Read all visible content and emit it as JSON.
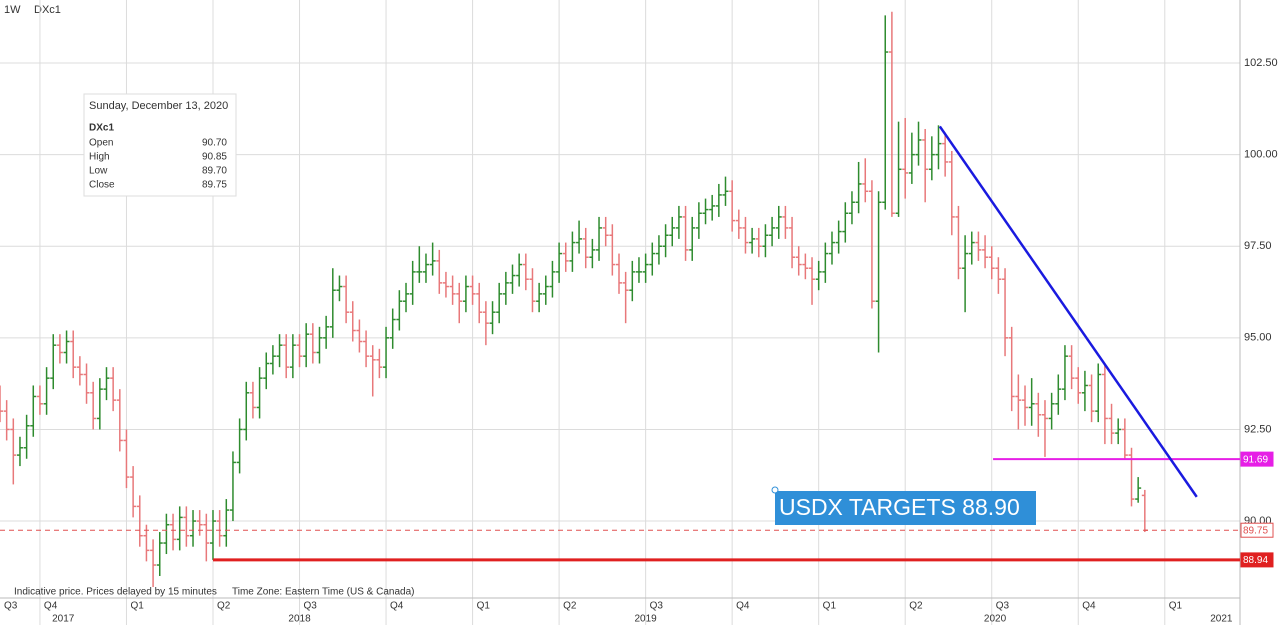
{
  "chart_data": {
    "type": "ohlc",
    "interval": "1W",
    "symbol": "DXc1",
    "up_color": "#2e8b2e",
    "down_color": "#e8787a",
    "ylim": [
      87.9,
      104.22
    ],
    "yticks": [
      {
        "value": 90,
        "label": "90.00"
      },
      {
        "value": 92.5,
        "label": "92.50"
      },
      {
        "value": 95,
        "label": "95.00"
      },
      {
        "value": 97.5,
        "label": "97.50"
      },
      {
        "value": 100,
        "label": "100.00"
      },
      {
        "value": 102.5,
        "label": "102.50"
      }
    ],
    "xlim": [
      0,
      186.3
    ],
    "xticks": [
      {
        "value": -7,
        "label": "Q3"
      },
      {
        "value": 6,
        "label": "Q4"
      },
      {
        "value": 19,
        "label": "Q1"
      },
      {
        "value": 32,
        "label": "Q2"
      },
      {
        "value": 45,
        "label": "Q3"
      },
      {
        "value": 58,
        "label": "Q4"
      },
      {
        "value": 71,
        "label": "Q1"
      },
      {
        "value": 84,
        "label": "Q2"
      },
      {
        "value": 97,
        "label": "Q3"
      },
      {
        "value": 110,
        "label": "Q4"
      },
      {
        "value": 123,
        "label": "Q1"
      },
      {
        "value": 136,
        "label": "Q2"
      },
      {
        "value": 149,
        "label": "Q3"
      },
      {
        "value": 162,
        "label": "Q4"
      },
      {
        "value": 175,
        "label": "Q1"
      }
    ],
    "year_labels": [
      {
        "value": 9.5,
        "label": "2017"
      },
      {
        "value": 45,
        "label": "2018"
      },
      {
        "value": 97,
        "label": "2019"
      },
      {
        "value": 149.5,
        "label": "2020"
      },
      {
        "value": 183.5,
        "label": "2021"
      }
    ],
    "grid": true,
    "bars": [
      [
        93.4,
        93.7,
        92.7,
        93.0
      ],
      [
        93.0,
        93.3,
        92.2,
        92.5
      ],
      [
        92.5,
        92.8,
        91.0,
        91.8
      ],
      [
        91.8,
        92.3,
        91.5,
        92.0
      ],
      [
        92.0,
        92.9,
        91.7,
        92.6
      ],
      [
        92.6,
        93.7,
        92.3,
        93.4
      ],
      [
        93.4,
        93.7,
        92.9,
        93.2
      ],
      [
        93.2,
        94.2,
        92.9,
        93.9
      ],
      [
        93.9,
        95.1,
        93.6,
        94.8
      ],
      [
        94.8,
        95.1,
        94.3,
        94.6
      ],
      [
        94.6,
        95.2,
        94.3,
        94.9
      ],
      [
        94.9,
        95.2,
        93.9,
        94.2
      ],
      [
        94.2,
        94.5,
        93.7,
        94.0
      ],
      [
        94.0,
        94.3,
        93.2,
        93.5
      ],
      [
        93.5,
        93.8,
        92.5,
        92.8
      ],
      [
        92.8,
        93.9,
        92.5,
        93.6
      ],
      [
        93.6,
        94.2,
        93.3,
        93.9
      ],
      [
        93.9,
        94.2,
        93.0,
        93.3
      ],
      [
        93.3,
        93.6,
        91.9,
        92.2
      ],
      [
        92.2,
        92.5,
        90.9,
        91.2
      ],
      [
        91.2,
        91.5,
        90.1,
        90.4
      ],
      [
        90.4,
        90.7,
        89.3,
        89.6
      ],
      [
        89.6,
        89.9,
        88.9,
        89.2
      ],
      [
        89.2,
        89.5,
        88.2,
        88.8
      ],
      [
        88.8,
        89.7,
        88.5,
        89.4
      ],
      [
        89.4,
        90.2,
        89.1,
        89.9
      ],
      [
        89.9,
        90.2,
        89.2,
        89.5
      ],
      [
        89.5,
        90.4,
        89.2,
        90.1
      ],
      [
        90.1,
        90.4,
        89.3,
        89.6
      ],
      [
        89.6,
        90.3,
        89.3,
        90.0
      ],
      [
        90.0,
        90.3,
        89.6,
        89.9
      ],
      [
        89.9,
        90.2,
        88.9,
        89.4
      ],
      [
        89.4,
        90.3,
        88.94,
        90.0
      ],
      [
        90.0,
        90.3,
        89.3,
        89.6
      ],
      [
        89.6,
        90.6,
        89.3,
        90.3
      ],
      [
        90.3,
        91.9,
        90.0,
        91.6
      ],
      [
        91.6,
        92.8,
        91.3,
        92.5
      ],
      [
        92.5,
        93.8,
        92.2,
        93.5
      ],
      [
        93.5,
        93.8,
        92.8,
        93.1
      ],
      [
        93.1,
        94.2,
        92.8,
        93.9
      ],
      [
        93.9,
        94.6,
        93.6,
        94.3
      ],
      [
        94.3,
        94.8,
        94.0,
        94.5
      ],
      [
        94.5,
        95.1,
        94.2,
        94.8
      ],
      [
        94.8,
        95.1,
        93.9,
        94.2
      ],
      [
        94.2,
        95.1,
        93.9,
        94.8
      ],
      [
        94.8,
        95.1,
        94.2,
        94.5
      ],
      [
        94.5,
        95.4,
        94.2,
        95.1
      ],
      [
        95.1,
        95.4,
        94.3,
        94.6
      ],
      [
        94.6,
        95.3,
        94.3,
        95.0
      ],
      [
        95.0,
        95.6,
        94.7,
        95.3
      ],
      [
        95.3,
        96.9,
        95.0,
        96.3
      ],
      [
        96.3,
        96.7,
        96.0,
        96.4
      ],
      [
        96.4,
        96.7,
        95.4,
        95.7
      ],
      [
        95.7,
        96.0,
        94.9,
        95.2
      ],
      [
        95.2,
        95.5,
        94.6,
        94.9
      ],
      [
        94.9,
        95.2,
        94.2,
        94.5
      ],
      [
        94.5,
        94.8,
        93.4,
        94.4
      ],
      [
        94.4,
        94.7,
        93.9,
        94.2
      ],
      [
        94.2,
        95.3,
        93.9,
        95.0
      ],
      [
        95.0,
        95.8,
        94.7,
        95.5
      ],
      [
        95.5,
        96.3,
        95.2,
        96.0
      ],
      [
        96.0,
        96.5,
        95.7,
        96.2
      ],
      [
        96.2,
        97.1,
        95.9,
        96.8
      ],
      [
        96.8,
        97.5,
        96.5,
        96.8
      ],
      [
        96.8,
        97.3,
        96.5,
        97.0
      ],
      [
        97.0,
        97.6,
        96.7,
        97.1
      ],
      [
        97.1,
        97.4,
        96.2,
        96.5
      ],
      [
        96.5,
        96.8,
        96.1,
        96.4
      ],
      [
        96.4,
        96.7,
        95.9,
        96.2
      ],
      [
        96.2,
        96.5,
        95.4,
        96.0
      ],
      [
        96.0,
        96.7,
        95.7,
        96.4
      ],
      [
        96.4,
        96.7,
        95.9,
        96.2
      ],
      [
        96.2,
        96.5,
        95.4,
        95.7
      ],
      [
        95.7,
        96.0,
        94.8,
        95.4
      ],
      [
        95.4,
        96.0,
        95.1,
        95.7
      ],
      [
        95.7,
        96.5,
        95.4,
        96.2
      ],
      [
        96.2,
        96.8,
        95.9,
        96.5
      ],
      [
        96.5,
        97.0,
        96.2,
        96.7
      ],
      [
        96.7,
        97.3,
        96.4,
        97.0
      ],
      [
        97.0,
        97.3,
        96.3,
        96.6
      ],
      [
        96.6,
        96.9,
        95.7,
        96.0
      ],
      [
        96.0,
        96.5,
        95.7,
        96.2
      ],
      [
        96.2,
        96.7,
        95.9,
        96.4
      ],
      [
        96.4,
        97.1,
        96.1,
        96.8
      ],
      [
        96.8,
        97.6,
        96.5,
        97.3
      ],
      [
        97.3,
        97.6,
        96.8,
        97.1
      ],
      [
        97.1,
        97.9,
        96.8,
        97.6
      ],
      [
        97.6,
        98.2,
        97.3,
        97.7
      ],
      [
        97.7,
        98.0,
        96.9,
        97.2
      ],
      [
        97.2,
        97.7,
        96.9,
        97.4
      ],
      [
        97.4,
        98.3,
        97.1,
        98.0
      ],
      [
        98.0,
        98.3,
        97.5,
        97.8
      ],
      [
        97.8,
        98.1,
        96.7,
        97.0
      ],
      [
        97.0,
        97.3,
        96.2,
        96.5
      ],
      [
        96.5,
        96.8,
        95.4,
        96.3
      ],
      [
        96.3,
        97.1,
        96.0,
        96.8
      ],
      [
        96.8,
        97.2,
        96.5,
        96.8
      ],
      [
        96.8,
        97.3,
        96.5,
        97.0
      ],
      [
        97.0,
        97.6,
        96.7,
        97.3
      ],
      [
        97.3,
        97.8,
        97.0,
        97.5
      ],
      [
        97.5,
        98.1,
        97.2,
        97.8
      ],
      [
        97.8,
        98.3,
        97.5,
        98.0
      ],
      [
        98.0,
        98.6,
        97.7,
        98.3
      ],
      [
        98.3,
        98.6,
        97.1,
        97.4
      ],
      [
        97.4,
        98.3,
        97.1,
        98.0
      ],
      [
        98.0,
        98.7,
        97.7,
        98.4
      ],
      [
        98.4,
        98.8,
        98.1,
        98.5
      ],
      [
        98.5,
        98.9,
        98.2,
        98.6
      ],
      [
        98.6,
        99.2,
        98.3,
        98.9
      ],
      [
        98.9,
        99.4,
        98.6,
        99.0
      ],
      [
        99.0,
        99.3,
        97.9,
        98.2
      ],
      [
        98.2,
        98.5,
        97.7,
        98.0
      ],
      [
        98.0,
        98.3,
        97.3,
        97.6
      ],
      [
        97.6,
        98.0,
        97.3,
        97.7
      ],
      [
        97.7,
        98.0,
        97.2,
        97.5
      ],
      [
        97.5,
        98.1,
        97.2,
        97.8
      ],
      [
        97.8,
        98.3,
        97.5,
        98.0
      ],
      [
        98.0,
        98.6,
        97.7,
        98.3
      ],
      [
        98.3,
        98.6,
        97.7,
        98.0
      ],
      [
        98.0,
        98.3,
        96.9,
        97.2
      ],
      [
        97.2,
        97.5,
        96.7,
        97.0
      ],
      [
        97.0,
        97.3,
        96.6,
        96.9
      ],
      [
        96.9,
        97.2,
        95.9,
        96.6
      ],
      [
        96.6,
        97.1,
        96.3,
        96.8
      ],
      [
        96.8,
        97.6,
        96.5,
        97.3
      ],
      [
        97.3,
        97.9,
        97.0,
        97.6
      ],
      [
        97.6,
        98.2,
        97.3,
        97.9
      ],
      [
        97.9,
        98.7,
        97.6,
        98.4
      ],
      [
        98.4,
        99.0,
        98.1,
        98.7
      ],
      [
        98.7,
        99.8,
        98.4,
        99.2
      ],
      [
        99.2,
        99.9,
        98.7,
        99.0
      ],
      [
        99.0,
        99.3,
        95.8,
        96.0
      ],
      [
        96.0,
        99.0,
        94.6,
        98.7
      ],
      [
        98.7,
        103.8,
        98.5,
        102.8
      ],
      [
        102.8,
        103.9,
        98.3,
        98.4
      ],
      [
        98.4,
        100.9,
        98.3,
        99.6
      ],
      [
        99.6,
        101.0,
        98.8,
        99.5
      ],
      [
        99.5,
        100.6,
        99.2,
        100.0
      ],
      [
        100.0,
        100.9,
        99.7,
        100.4
      ],
      [
        100.4,
        100.7,
        98.7,
        99.6
      ],
      [
        99.6,
        100.5,
        99.3,
        100.0
      ],
      [
        100.0,
        100.8,
        99.6,
        100.3
      ],
      [
        100.3,
        100.6,
        99.4,
        99.8
      ],
      [
        99.8,
        100.1,
        97.8,
        98.3
      ],
      [
        98.3,
        98.6,
        96.6,
        96.9
      ],
      [
        96.9,
        97.8,
        95.7,
        97.3
      ],
      [
        97.3,
        97.9,
        97.0,
        97.6
      ],
      [
        97.6,
        97.9,
        97.1,
        97.4
      ],
      [
        97.4,
        97.8,
        96.9,
        97.2
      ],
      [
        97.2,
        97.5,
        96.6,
        96.9
      ],
      [
        96.9,
        97.2,
        96.2,
        96.6
      ],
      [
        96.6,
        96.9,
        94.5,
        95.0
      ],
      [
        95.0,
        95.3,
        93.0,
        93.4
      ],
      [
        93.4,
        94.0,
        92.5,
        93.3
      ],
      [
        93.3,
        93.7,
        92.6,
        93.1
      ],
      [
        93.1,
        93.9,
        92.6,
        93.2
      ],
      [
        93.2,
        93.5,
        92.3,
        92.9
      ],
      [
        92.9,
        93.3,
        91.75,
        92.8
      ],
      [
        92.8,
        93.5,
        92.5,
        93.2
      ],
      [
        93.2,
        94.0,
        92.9,
        93.6
      ],
      [
        93.6,
        94.8,
        93.3,
        94.5
      ],
      [
        94.5,
        94.8,
        93.6,
        93.9
      ],
      [
        93.9,
        94.2,
        93.2,
        93.5
      ],
      [
        93.5,
        94.1,
        93.0,
        93.7
      ],
      [
        93.7,
        94.0,
        92.7,
        93.0
      ],
      [
        93.0,
        94.3,
        92.7,
        94.0
      ],
      [
        94.0,
        94.3,
        92.1,
        92.8
      ],
      [
        92.8,
        93.2,
        92.1,
        92.4
      ],
      [
        92.4,
        92.8,
        92.1,
        92.5
      ],
      [
        92.5,
        92.8,
        91.7,
        91.8
      ],
      [
        91.8,
        92.0,
        90.4,
        90.6
      ],
      [
        90.6,
        91.2,
        90.5,
        90.9
      ],
      [
        90.7,
        90.85,
        89.7,
        89.75
      ]
    ],
    "levels": [
      {
        "value": 91.69,
        "label": "91.69",
        "color": "#e61ee6",
        "start": 149.2,
        "style": "solid"
      },
      {
        "value": 89.75,
        "label": "89.75",
        "color": "#e05050",
        "start": 0,
        "style": "dashed"
      },
      {
        "value": 88.94,
        "label": "88.94",
        "color": "#e02020",
        "start": 32,
        "style": "solid"
      }
    ],
    "trendline": {
      "color": "#1a1adf",
      "points": [
        [
          141.2,
          100.77
        ],
        [
          179.8,
          90.66
        ]
      ]
    },
    "annotation": "USDX TARGETS 88.90",
    "tooltip": {
      "date": "Sunday, December 13, 2020",
      "symbol": "DXc1",
      "rows": [
        {
          "label": "Open",
          "value": "90.70"
        },
        {
          "label": "High",
          "value": "90.85"
        },
        {
          "label": "Low",
          "value": "89.70"
        },
        {
          "label": "Close",
          "value": "89.75"
        }
      ]
    },
    "notes": [
      "Indicative price. Prices delayed by 15 minutes",
      "Time Zone: Eastern Time (US & Canada)"
    ]
  }
}
